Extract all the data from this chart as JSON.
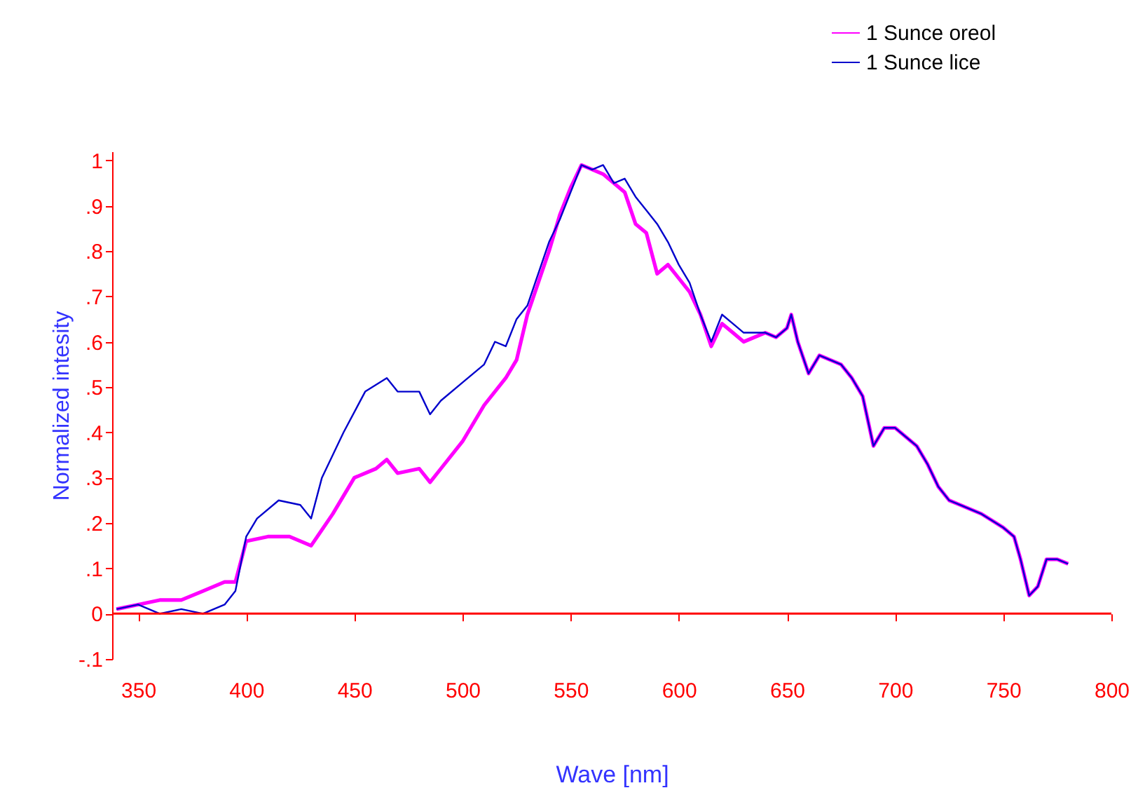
{
  "chart_data": {
    "type": "line",
    "xlabel": "Wave [nm]",
    "ylabel": "Normalized intesity",
    "xlim": [
      338,
      800
    ],
    "ylim": [
      -0.1,
      1.02
    ],
    "xticks": [
      350,
      400,
      450,
      500,
      550,
      600,
      650,
      700,
      750,
      800
    ],
    "yticks": [
      {
        "value": -0.1,
        "label": "-.1"
      },
      0,
      {
        "value": 0.1,
        "label": ".1"
      },
      {
        "value": 0.2,
        "label": ".2"
      },
      {
        "value": 0.3,
        "label": ".3"
      },
      {
        "value": 0.4,
        "label": ".4"
      },
      {
        "value": 0.5,
        "label": ".5"
      },
      {
        "value": 0.6,
        "label": ".6"
      },
      {
        "value": 0.7,
        "label": ".7"
      },
      {
        "value": 0.8,
        "label": ".8"
      },
      {
        "value": 0.9,
        "label": ".9"
      },
      1
    ],
    "ref_lines": [
      {
        "axis": "y",
        "value": 0,
        "color": "#ff0000"
      }
    ],
    "grid": false,
    "legend": "top right",
    "marker": "none",
    "line_style": "solid",
    "series": [
      {
        "name": "1 Sunce oreol",
        "color": "#ff00ff",
        "x": [
          340,
          350,
          360,
          370,
          380,
          390,
          395,
          400,
          410,
          420,
          425,
          430,
          440,
          450,
          460,
          465,
          470,
          480,
          485,
          490,
          500,
          510,
          520,
          525,
          530,
          535,
          540,
          545,
          550,
          555,
          560,
          565,
          570,
          575,
          580,
          585,
          590,
          595,
          600,
          605,
          610,
          615,
          620,
          625,
          630,
          640,
          645,
          650,
          652,
          655,
          660,
          665,
          670,
          675,
          680,
          685,
          690,
          695,
          700,
          705,
          710,
          715,
          720,
          725,
          730,
          740,
          750,
          755,
          758,
          762,
          766,
          770,
          775,
          780
        ],
        "values": [
          0.01,
          0.02,
          0.03,
          0.03,
          0.05,
          0.07,
          0.07,
          0.16,
          0.17,
          0.17,
          0.16,
          0.15,
          0.22,
          0.3,
          0.32,
          0.34,
          0.31,
          0.32,
          0.29,
          0.32,
          0.38,
          0.46,
          0.52,
          0.56,
          0.66,
          0.73,
          0.8,
          0.88,
          0.94,
          0.99,
          0.98,
          0.97,
          0.95,
          0.93,
          0.86,
          0.84,
          0.75,
          0.77,
          0.74,
          0.71,
          0.66,
          0.59,
          0.64,
          0.62,
          0.6,
          0.62,
          0.61,
          0.63,
          0.66,
          0.6,
          0.53,
          0.57,
          0.56,
          0.55,
          0.52,
          0.48,
          0.37,
          0.41,
          0.41,
          0.39,
          0.37,
          0.33,
          0.28,
          0.25,
          0.24,
          0.22,
          0.19,
          0.17,
          0.12,
          0.04,
          0.06,
          0.12,
          0.12,
          0.11
        ]
      },
      {
        "name": "1 Sunce lice",
        "color": "#0000cc",
        "x": [
          340,
          350,
          360,
          370,
          380,
          390,
          395,
          400,
          405,
          415,
          425,
          430,
          435,
          445,
          455,
          465,
          470,
          480,
          485,
          490,
          500,
          510,
          515,
          520,
          525,
          530,
          535,
          540,
          545,
          550,
          555,
          560,
          565,
          570,
          575,
          580,
          585,
          590,
          595,
          600,
          605,
          610,
          615,
          620,
          625,
          630,
          640,
          645,
          650,
          652,
          655,
          660,
          665,
          670,
          675,
          680,
          685,
          690,
          695,
          700,
          705,
          710,
          715,
          720,
          725,
          730,
          740,
          750,
          755,
          758,
          762,
          766,
          770,
          775,
          780
        ],
        "values": [
          0.01,
          0.02,
          0.0,
          0.01,
          0.0,
          0.02,
          0.05,
          0.17,
          0.21,
          0.25,
          0.24,
          0.21,
          0.3,
          0.4,
          0.49,
          0.52,
          0.49,
          0.49,
          0.44,
          0.47,
          0.51,
          0.55,
          0.6,
          0.59,
          0.65,
          0.68,
          0.75,
          0.82,
          0.87,
          0.93,
          0.99,
          0.98,
          0.99,
          0.95,
          0.96,
          0.92,
          0.89,
          0.86,
          0.82,
          0.77,
          0.73,
          0.66,
          0.6,
          0.66,
          0.64,
          0.62,
          0.62,
          0.61,
          0.63,
          0.66,
          0.6,
          0.53,
          0.57,
          0.56,
          0.55,
          0.52,
          0.48,
          0.37,
          0.41,
          0.41,
          0.39,
          0.37,
          0.33,
          0.28,
          0.25,
          0.24,
          0.22,
          0.19,
          0.17,
          0.12,
          0.04,
          0.06,
          0.12,
          0.12,
          0.11
        ]
      }
    ]
  }
}
